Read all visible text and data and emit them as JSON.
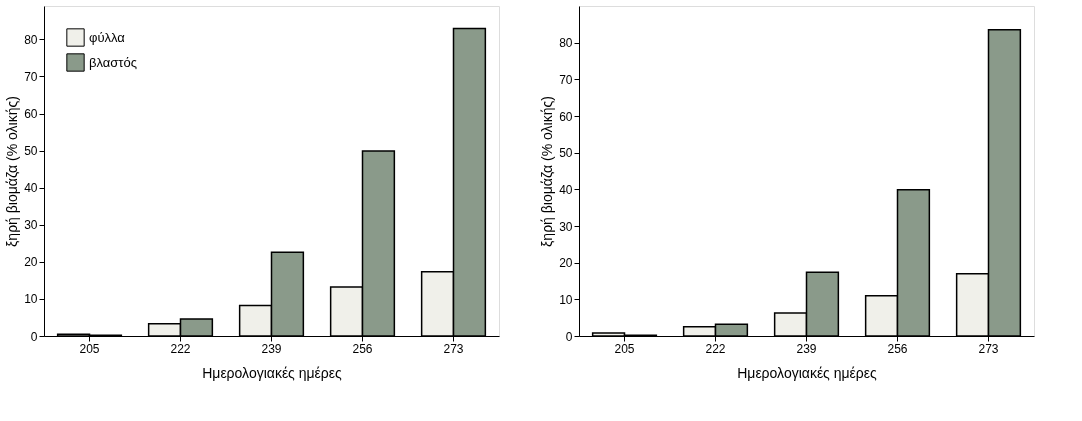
{
  "chart_data": [
    {
      "type": "bar",
      "xlabel": "Ημερολογιακές ημέρες",
      "ylabel": "ξηρή βιομάζα (% ολικής)",
      "categories": [
        "205",
        "222",
        "239",
        "256",
        "273"
      ],
      "ylim": [
        0,
        89
      ],
      "yticks": [
        0,
        10,
        20,
        30,
        40,
        50,
        60,
        70,
        80
      ],
      "legend": "top left",
      "grid": false,
      "series": [
        {
          "name": "φύλλα",
          "color": "#f0f0ea",
          "values": [
            0.5,
            3.3,
            8.2,
            13.2,
            17.3
          ]
        },
        {
          "name": "βλαστός",
          "color": "#8a9a8a",
          "values": [
            0.2,
            4.6,
            22.6,
            49.9,
            82.9
          ]
        }
      ]
    },
    {
      "type": "bar",
      "xlabel": "Ημερολογιακές ημέρες",
      "ylabel": "ξηρή βιομάζα (% ολικής)",
      "categories": [
        "205",
        "222",
        "239",
        "256",
        "273"
      ],
      "ylim": [
        0,
        90
      ],
      "yticks": [
        0,
        10,
        20,
        30,
        40,
        50,
        60,
        70,
        80
      ],
      "grid": false,
      "series": [
        {
          "color": "#f0f0ea",
          "values": [
            0.8,
            2.5,
            6.3,
            11.0,
            17.0
          ]
        },
        {
          "color": "#8a9a8a",
          "values": [
            0.2,
            3.2,
            17.4,
            39.9,
            83.5
          ]
        }
      ]
    }
  ]
}
